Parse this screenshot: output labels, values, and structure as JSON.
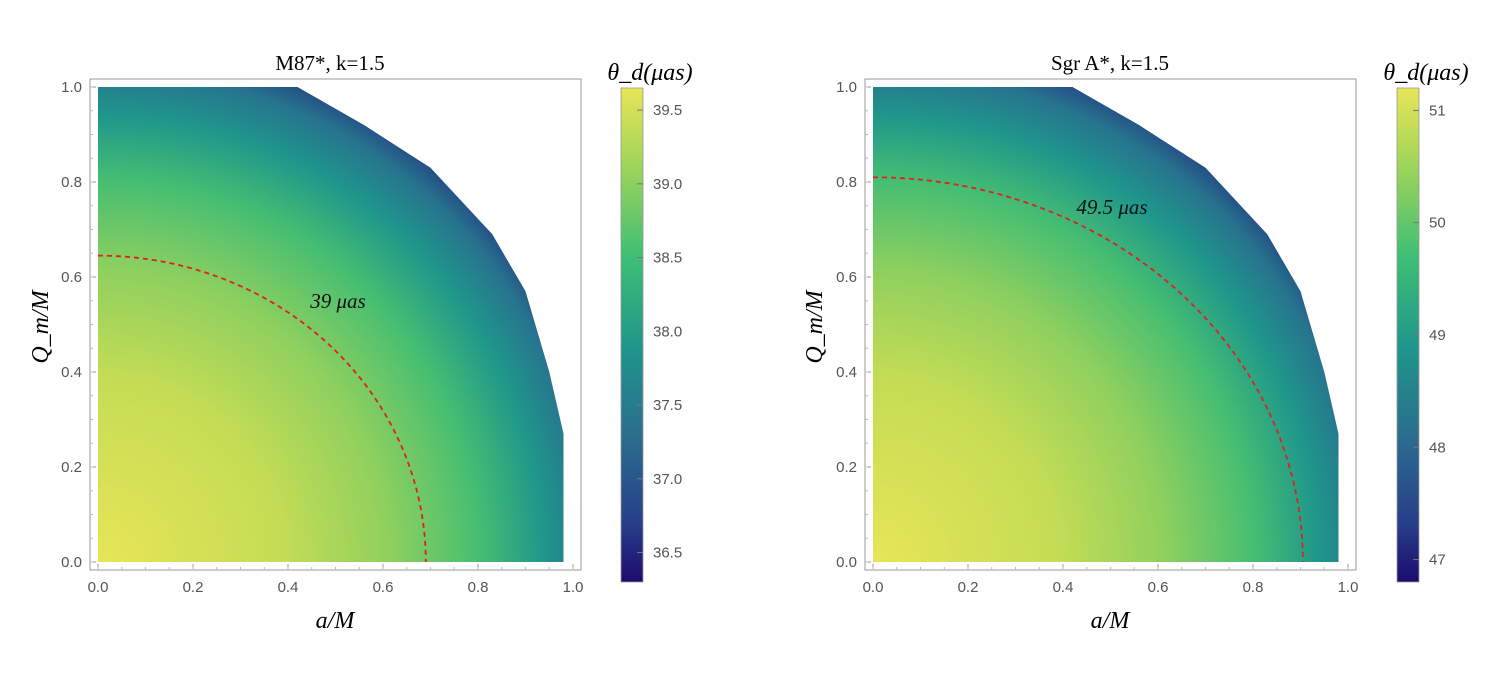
{
  "chart_data": [
    {
      "type": "heatmap",
      "title": "M87*, k=1.5",
      "xlabel": "a/M",
      "ylabel": "Q_m/M",
      "xlim": [
        0,
        1
      ],
      "ylim": [
        0,
        1
      ],
      "x_ticks": [
        "0.0",
        "0.2",
        "0.4",
        "0.6",
        "0.8",
        "1.0"
      ],
      "y_ticks": [
        "0.0",
        "0.2",
        "0.4",
        "0.6",
        "0.8",
        "1.0"
      ],
      "colorbar_label": "θ_d(μas)",
      "colorbar_range": [
        36.3,
        39.65
      ],
      "colorbar_ticks": [
        "36.5",
        "37.0",
        "37.5",
        "38.0",
        "38.5",
        "39.0",
        "39.5"
      ],
      "colormap": [
        "#1d0b6e",
        "#2f5d8e",
        "#1f918d",
        "#3fbf74",
        "#9ed45a",
        "#e8e557"
      ],
      "max_value_at_origin": 39.65,
      "contour": {
        "label": "39 μas",
        "value": 39,
        "x_intercept": 0.69,
        "y_intercept": 0.645,
        "style": "dashed",
        "color": "#e02020"
      },
      "region_boundary": [
        [
          0.0,
          1.0
        ],
        [
          0.42,
          1.0
        ],
        [
          0.56,
          0.92
        ],
        [
          0.7,
          0.83
        ],
        [
          0.83,
          0.69
        ],
        [
          0.9,
          0.57
        ],
        [
          0.95,
          0.4
        ],
        [
          0.98,
          0.27
        ],
        [
          0.98,
          0.0
        ]
      ]
    },
    {
      "type": "heatmap",
      "title": "Sgr A*, k=1.5",
      "xlabel": "a/M",
      "ylabel": "Q_m/M",
      "xlim": [
        0,
        1
      ],
      "ylim": [
        0,
        1
      ],
      "x_ticks": [
        "0.0",
        "0.2",
        "0.4",
        "0.6",
        "0.8",
        "1.0"
      ],
      "y_ticks": [
        "0.0",
        "0.2",
        "0.4",
        "0.6",
        "0.8",
        "1.0"
      ],
      "colorbar_label": "θ_d(μas)",
      "colorbar_range": [
        46.8,
        51.2
      ],
      "colorbar_ticks": [
        "47",
        "48",
        "49",
        "50",
        "51"
      ],
      "colormap": [
        "#1d0b6e",
        "#2f5d8e",
        "#1f918d",
        "#3fbf74",
        "#9ed45a",
        "#e8e557"
      ],
      "max_value_at_origin": 51.2,
      "contour": {
        "label": "49.5 μas",
        "value": 49.5,
        "x_intercept": 0.905,
        "y_intercept": 0.81,
        "style": "dashed",
        "color": "#e02020"
      },
      "region_boundary": [
        [
          0.0,
          1.0
        ],
        [
          0.42,
          1.0
        ],
        [
          0.56,
          0.92
        ],
        [
          0.7,
          0.83
        ],
        [
          0.83,
          0.69
        ],
        [
          0.9,
          0.57
        ],
        [
          0.95,
          0.4
        ],
        [
          0.98,
          0.27
        ],
        [
          0.98,
          0.0
        ]
      ]
    }
  ]
}
